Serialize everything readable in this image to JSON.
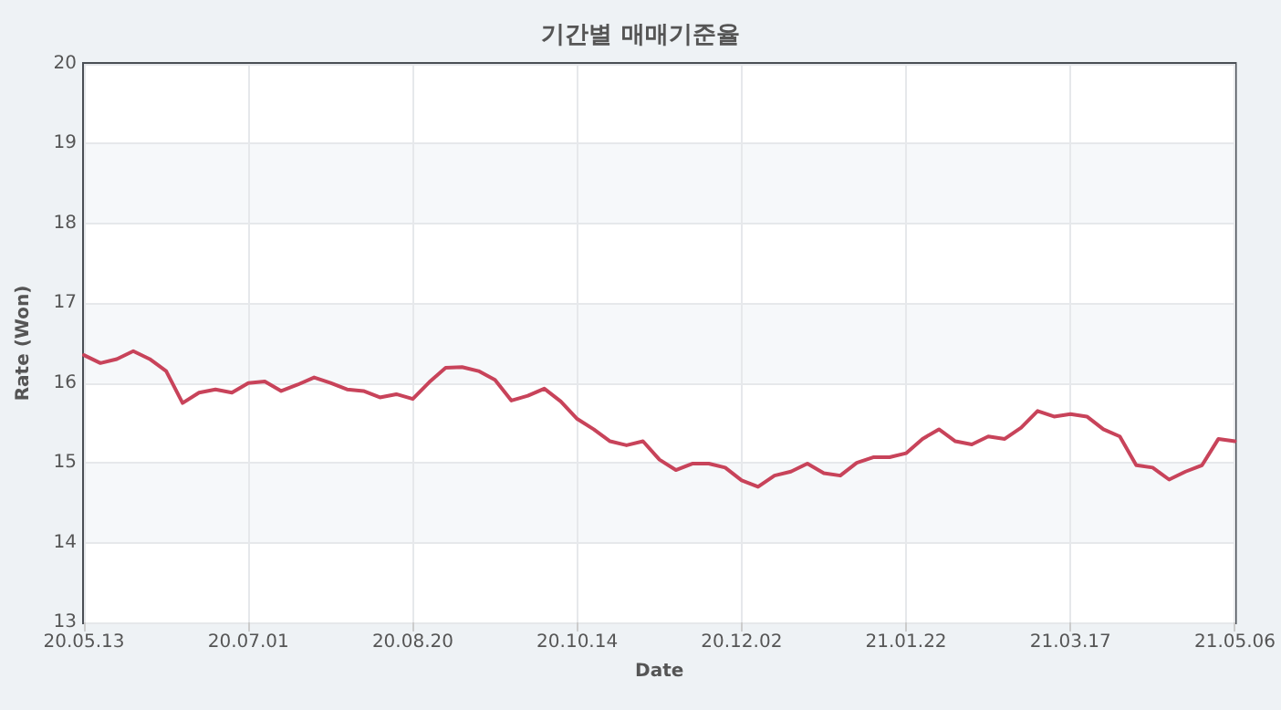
{
  "chart_data": {
    "type": "line",
    "title": "기간별 매매기준율",
    "xlabel": "Date",
    "ylabel": "Rate (Won)",
    "categories": [
      "20.05.13",
      null,
      null,
      null,
      null,
      null,
      null,
      null,
      null,
      null,
      "20.07.01",
      null,
      null,
      null,
      null,
      null,
      null,
      null,
      null,
      null,
      "20.08.20",
      null,
      null,
      null,
      null,
      null,
      null,
      null,
      null,
      null,
      "20.10.14",
      null,
      null,
      null,
      null,
      null,
      null,
      null,
      null,
      null,
      "20.12.02",
      null,
      null,
      null,
      null,
      null,
      null,
      null,
      null,
      null,
      "21.01.22",
      null,
      null,
      null,
      null,
      null,
      null,
      null,
      null,
      null,
      "21.03.17",
      null,
      null,
      null,
      null,
      null,
      null,
      null,
      null,
      null,
      "21.05.06"
    ],
    "series": [
      {
        "color": "#c8435a",
        "values": [
          16.35,
          16.25,
          16.3,
          16.4,
          16.3,
          16.15,
          15.75,
          15.88,
          15.92,
          15.88,
          16.0,
          16.02,
          15.9,
          15.98,
          16.07,
          16.0,
          15.92,
          15.9,
          15.82,
          15.86,
          15.8,
          16.01,
          16.19,
          16.2,
          16.15,
          16.04,
          15.78,
          15.84,
          15.93,
          15.77,
          15.55,
          15.42,
          15.27,
          15.22,
          15.27,
          15.04,
          14.91,
          14.99,
          14.99,
          14.94,
          14.78,
          14.7,
          14.84,
          14.89,
          14.99,
          14.87,
          14.84,
          15.0,
          15.07,
          15.07,
          15.12,
          15.3,
          15.42,
          15.27,
          15.23,
          15.33,
          15.3,
          15.44,
          15.65,
          15.58,
          15.61,
          15.58,
          15.42,
          15.33,
          14.97,
          14.94,
          14.79,
          14.89,
          14.97,
          15.3,
          15.27
        ]
      }
    ],
    "ylim": [
      13,
      20
    ],
    "yticks": [
      13,
      14,
      15,
      16,
      17,
      18,
      19,
      20
    ],
    "grid": true,
    "marker": "none",
    "line_style": "solid"
  }
}
